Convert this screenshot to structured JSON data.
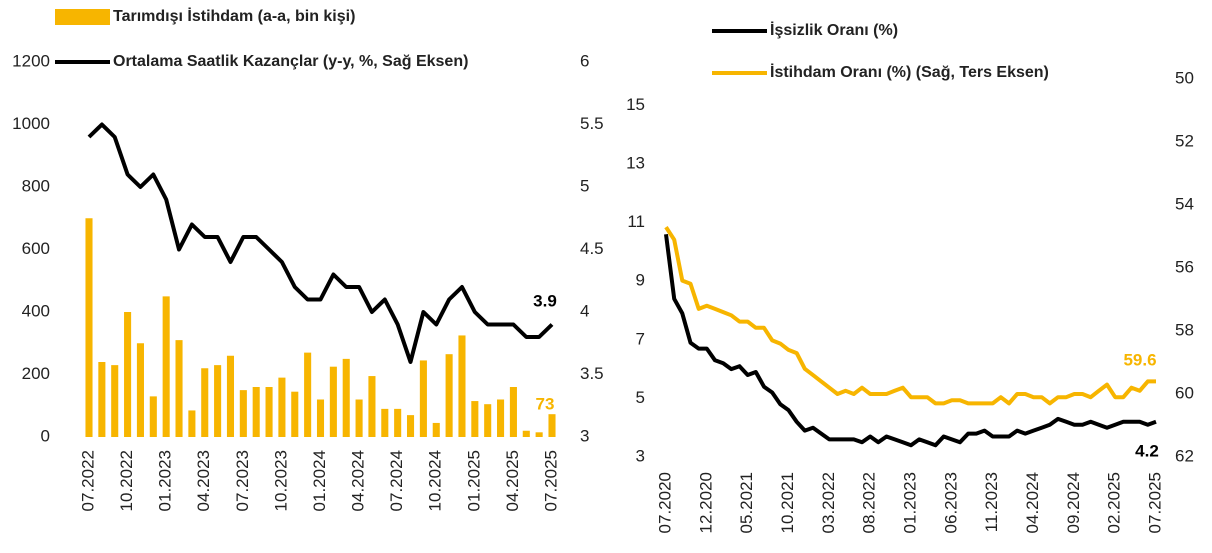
{
  "chart_data": [
    {
      "type": "combo",
      "categories": [
        "07.2022",
        null,
        null,
        "10.2022",
        null,
        null,
        "01.2023",
        null,
        null,
        "04.2023",
        null,
        null,
        "07.2023",
        null,
        null,
        "10.2023",
        null,
        null,
        "01.2024",
        null,
        null,
        "04.2024",
        null,
        null,
        "07.2024",
        null,
        null,
        "10.2024",
        null,
        null,
        "01.2025",
        null,
        null,
        "04.2025",
        null,
        null,
        "07.2025"
      ],
      "series": [
        {
          "name": "Tarımdışı İstihdam (a-a, bin kişi)",
          "type": "bar",
          "color": "#f7b500",
          "values": [
            700,
            240,
            230,
            400,
            300,
            130,
            450,
            310,
            85,
            220,
            230,
            260,
            150,
            160,
            160,
            190,
            145,
            270,
            120,
            225,
            250,
            120,
            195,
            90,
            90,
            70,
            245,
            45,
            265,
            325,
            115,
            105,
            120,
            160,
            20,
            15,
            73
          ]
        },
        {
          "name": "Ortalama Saatlik Kazançlar (y-y, %, Sağ Eksen)",
          "type": "line",
          "color": "#000000",
          "axis": "y2",
          "values": [
            5.4,
            5.5,
            5.4,
            5.1,
            5.0,
            5.1,
            4.9,
            4.5,
            4.7,
            4.6,
            4.6,
            4.4,
            4.6,
            4.6,
            4.5,
            4.4,
            4.2,
            4.1,
            4.1,
            4.3,
            4.2,
            4.2,
            4.0,
            4.1,
            3.9,
            3.6,
            4.0,
            3.9,
            4.1,
            4.2,
            4.0,
            3.9,
            3.9,
            3.9,
            3.8,
            3.8,
            3.9
          ]
        }
      ],
      "ylim": [
        0,
        1200
      ],
      "yticks": [
        0,
        200,
        400,
        600,
        800,
        1000,
        1200
      ],
      "y2lim": [
        3,
        6
      ],
      "y2ticks": [
        3,
        3.5,
        4,
        4.5,
        5,
        5.5,
        6
      ],
      "y2_inverted": false
    },
    {
      "type": "line",
      "categories": [
        "07.2020",
        null,
        null,
        null,
        null,
        "12.2020",
        null,
        null,
        null,
        null,
        "05.2021",
        null,
        null,
        null,
        null,
        "10.2021",
        null,
        null,
        null,
        null,
        "03.2022",
        null,
        null,
        null,
        null,
        "08.2022",
        null,
        null,
        null,
        null,
        "01.2023",
        null,
        null,
        null,
        null,
        "06.2023",
        null,
        null,
        null,
        null,
        "11.2023",
        null,
        null,
        null,
        null,
        "04.2024",
        null,
        null,
        null,
        null,
        "09.2024",
        null,
        null,
        null,
        null,
        "02.2025",
        null,
        null,
        null,
        null,
        "07.2025"
      ],
      "series": [
        {
          "name": "İşsizlik Oranı (%)",
          "type": "line",
          "color": "#000000",
          "values": [
            10.6,
            8.4,
            7.9,
            6.9,
            6.7,
            6.7,
            6.3,
            6.2,
            6.0,
            6.1,
            5.8,
            5.9,
            5.4,
            5.2,
            4.8,
            4.6,
            4.2,
            3.9,
            4.0,
            3.8,
            3.6,
            3.6,
            3.6,
            3.6,
            3.5,
            3.7,
            3.5,
            3.7,
            3.6,
            3.5,
            3.4,
            3.6,
            3.5,
            3.4,
            3.7,
            3.6,
            3.5,
            3.8,
            3.8,
            3.9,
            3.7,
            3.7,
            3.7,
            3.9,
            3.8,
            3.9,
            4.0,
            4.1,
            4.3,
            4.2,
            4.1,
            4.1,
            4.2,
            4.1,
            4.0,
            4.1,
            4.2,
            4.2,
            4.2,
            4.1,
            4.2
          ]
        },
        {
          "name": "İstihdam Oranı (%) (Sağ, Ters Eksen)",
          "type": "line",
          "color": "#f7b500",
          "axis": "y2",
          "values": [
            54.7,
            55.1,
            56.4,
            56.5,
            57.3,
            57.2,
            57.3,
            57.4,
            57.5,
            57.7,
            57.7,
            57.9,
            57.9,
            58.3,
            58.4,
            58.6,
            58.7,
            59.2,
            59.4,
            59.6,
            59.8,
            60.0,
            59.9,
            60.0,
            59.8,
            60.0,
            60.0,
            60.0,
            59.9,
            59.8,
            60.1,
            60.1,
            60.1,
            60.3,
            60.3,
            60.2,
            60.2,
            60.3,
            60.3,
            60.3,
            60.3,
            60.1,
            60.3,
            60.0,
            60.0,
            60.1,
            60.1,
            60.3,
            60.1,
            60.1,
            60.0,
            60.0,
            60.1,
            59.9,
            59.7,
            60.1,
            60.1,
            59.8,
            59.9,
            59.6,
            59.6
          ]
        }
      ],
      "ylim": [
        3,
        15.9
      ],
      "yticks": [
        3,
        5,
        7,
        9,
        11,
        13,
        15
      ],
      "y2lim": [
        50,
        62
      ],
      "y2ticks": [
        50,
        52,
        54,
        56,
        58,
        60,
        62
      ],
      "y2_inverted": true
    }
  ]
}
